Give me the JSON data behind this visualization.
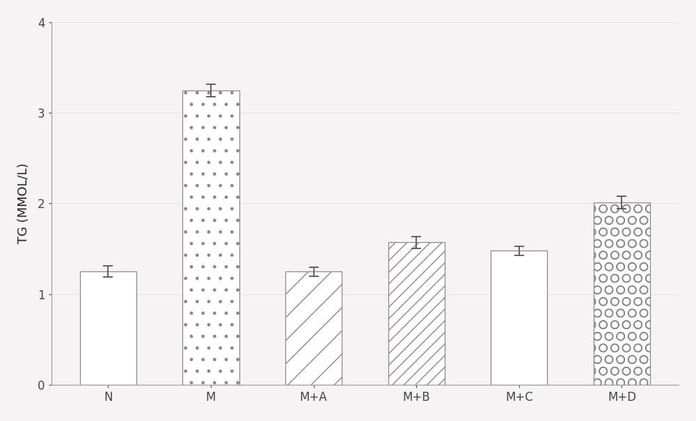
{
  "categories": [
    "N",
    "M",
    "M+A",
    "M+B",
    "M+C",
    "M+D"
  ],
  "values": [
    1.25,
    3.25,
    1.25,
    1.57,
    1.48,
    2.01
  ],
  "errors": [
    0.06,
    0.07,
    0.05,
    0.065,
    0.05,
    0.07
  ],
  "hatches": [
    "",
    ".",
    "/",
    "//",
    "~",
    "o"
  ],
  "bar_facecolor": "white",
  "bar_edgecolor": "#888888",
  "ylabel": "TG (MMOL/L)",
  "ylim": [
    0,
    4
  ],
  "yticks": [
    0,
    1,
    2,
    3,
    4
  ],
  "background_color": "#f5f3f3",
  "axis_fontsize": 13,
  "tick_fontsize": 12,
  "bar_width": 0.55,
  "hatch_color": "#888888",
  "hatch_linewidth": 1.0
}
